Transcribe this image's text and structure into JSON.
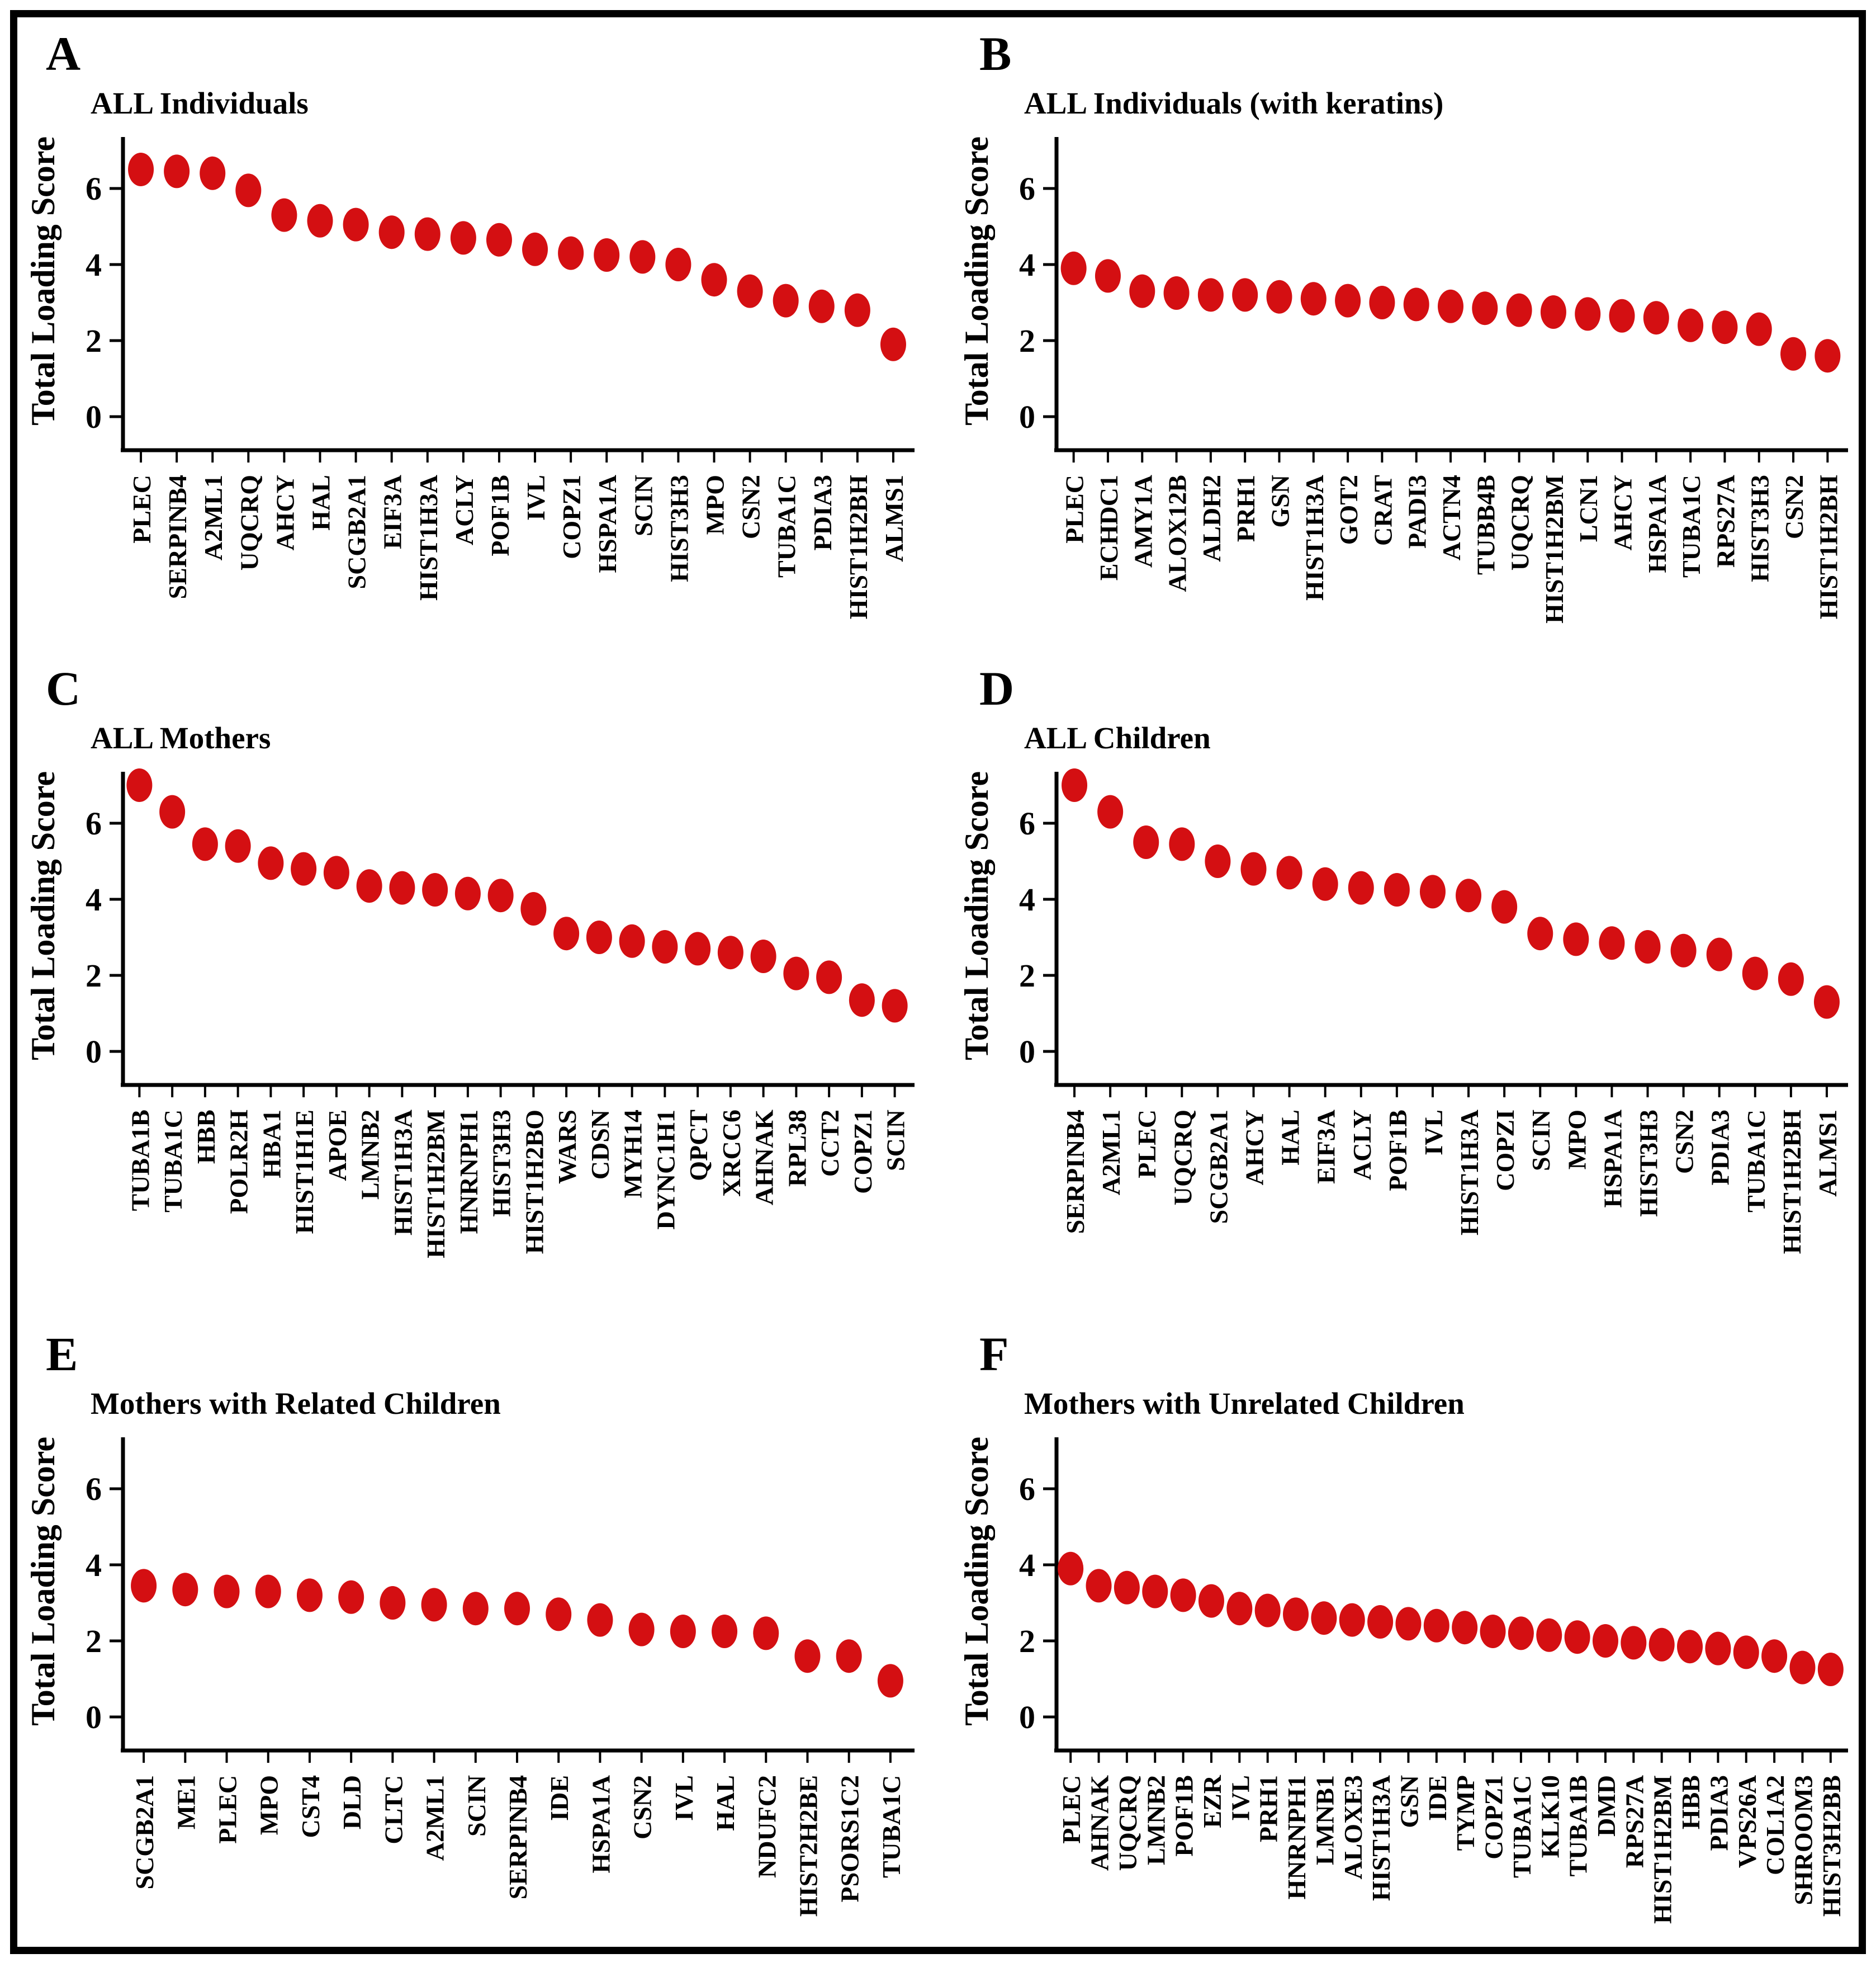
{
  "figure": {
    "background": "#ffffff",
    "border_color": "#000000",
    "dot_color": "#d40f12"
  },
  "chart_data": [
    {
      "type": "scatter",
      "panel_letter": "A",
      "title": "ALL Individuals",
      "ylabel": "Total Loading Score",
      "yticks": [
        0,
        2,
        4,
        6
      ],
      "ylim": [
        -0.9,
        7.35
      ],
      "grid": false,
      "dot_color": "#d40f12",
      "categories": [
        "PLEC",
        "SERPINB4",
        "A2ML1",
        "UQCRQ",
        "AHCY",
        "HAL",
        "SCGB2A1",
        "EIF3A",
        "HIST1H3A",
        "ACLY",
        "POF1B",
        "IVL",
        "COPZ1",
        "HSPA1A",
        "SCIN",
        "HIST3H3",
        "MPO",
        "CSN2",
        "TUBA1C",
        "PDIA3",
        "HIST1H2BH",
        "ALMS1"
      ],
      "values": [
        6.5,
        6.45,
        6.4,
        5.95,
        5.3,
        5.15,
        5.05,
        4.85,
        4.8,
        4.7,
        4.65,
        4.4,
        4.3,
        4.25,
        4.2,
        4.0,
        3.6,
        3.3,
        3.05,
        2.9,
        2.8,
        1.9
      ]
    },
    {
      "type": "scatter",
      "panel_letter": "B",
      "title": "ALL Individuals (with keratins)",
      "ylabel": "Total Loading Score",
      "yticks": [
        0,
        2,
        4,
        6
      ],
      "ylim": [
        -0.9,
        7.35
      ],
      "grid": false,
      "dot_color": "#d40f12",
      "categories": [
        "PLEC",
        "ECHDC1",
        "AMY1A",
        "ALOX12B",
        "ALDH2",
        "PRH1",
        "GSN",
        "HIST1H3A",
        "GOT2",
        "CRAT",
        "PADI3",
        "ACTN4",
        "TUBB4B",
        "UQCRQ",
        "HIST1H2BM",
        "LCN1",
        "AHCY",
        "HSPA1A",
        "TUBA1C",
        "RPS27A",
        "HIST3H3",
        "CSN2",
        "HIST1H2BH"
      ],
      "values": [
        3.9,
        3.7,
        3.3,
        3.25,
        3.2,
        3.2,
        3.15,
        3.1,
        3.05,
        3.0,
        2.95,
        2.9,
        2.85,
        2.8,
        2.75,
        2.7,
        2.65,
        2.6,
        2.4,
        2.35,
        2.3,
        1.65,
        1.6
      ]
    },
    {
      "type": "scatter",
      "panel_letter": "C",
      "title": "ALL Mothers",
      "ylabel": "Total Loading Score",
      "yticks": [
        0,
        2,
        4,
        6
      ],
      "ylim": [
        -0.9,
        7.35
      ],
      "grid": false,
      "dot_color": "#d40f12",
      "categories": [
        "TUBA1B",
        "TUBA1C",
        "HBB",
        "POLR2H",
        "HBA1",
        "HIST1H1E",
        "APOE",
        "LMNB2",
        "HIST1H3A",
        "HIST1H2BM",
        "HNRNPH1",
        "HIST3H3",
        "HIST1H2BO",
        "WARS",
        "CDSN",
        "MYH14",
        "DYNC1H1",
        "QPCT",
        "XRCC6",
        "AHNAK",
        "RPL38",
        "CCT2",
        "COPZ1",
        "SCIN"
      ],
      "values": [
        7.0,
        6.3,
        5.45,
        5.4,
        4.95,
        4.8,
        4.7,
        4.35,
        4.3,
        4.25,
        4.15,
        4.1,
        3.75,
        3.1,
        3.0,
        2.9,
        2.75,
        2.7,
        2.6,
        2.5,
        2.05,
        1.95,
        1.35,
        1.2
      ]
    },
    {
      "type": "scatter",
      "panel_letter": "D",
      "title": "ALL Children",
      "ylabel": "Total Loading Score",
      "yticks": [
        0,
        2,
        4,
        6
      ],
      "ylim": [
        -0.9,
        7.35
      ],
      "grid": false,
      "dot_color": "#d40f12",
      "categories": [
        "SERPINB4",
        "A2ML1",
        "PLEC",
        "UQCRQ",
        "SCGB2A1",
        "AHCY",
        "HAL",
        "EIF3A",
        "ACLY",
        "POF1B",
        "IVL",
        "HIST1H3A",
        "COPZI",
        "SCIN",
        "MPO",
        "HSPA1A",
        "HIST3H3",
        "CSN2",
        "PDIA3",
        "TUBA1C",
        "HIST1H2BH",
        "ALMS1"
      ],
      "values": [
        7.0,
        6.3,
        5.5,
        5.45,
        5.0,
        4.8,
        4.7,
        4.4,
        4.3,
        4.25,
        4.2,
        4.1,
        3.8,
        3.1,
        2.95,
        2.85,
        2.75,
        2.65,
        2.55,
        2.05,
        1.9,
        1.3
      ]
    },
    {
      "type": "scatter",
      "panel_letter": "E",
      "title": "Mothers with Related Children",
      "ylabel": "Total Loading Score",
      "yticks": [
        0,
        2,
        4,
        6
      ],
      "ylim": [
        -0.9,
        7.35
      ],
      "grid": false,
      "dot_color": "#d40f12",
      "categories": [
        "SCGB2A1",
        "ME1",
        "PLEC",
        "MPO",
        "CST4",
        "DLD",
        "CLTC",
        "A2ML1",
        "SCIN",
        "SERPINB4",
        "IDE",
        "HSPA1A",
        "CSN2",
        "IVL",
        "HAL",
        "NDUFC2",
        "HIST2H2BE",
        "PSORS1C2",
        "TUBA1C"
      ],
      "values": [
        3.45,
        3.35,
        3.3,
        3.3,
        3.2,
        3.15,
        3.0,
        2.95,
        2.85,
        2.85,
        2.7,
        2.55,
        2.3,
        2.25,
        2.25,
        2.2,
        1.6,
        1.6,
        0.95
      ]
    },
    {
      "type": "scatter",
      "panel_letter": "F",
      "title": "Mothers with Unrelated Children",
      "ylabel": "Total Loading Score",
      "yticks": [
        0,
        2,
        4,
        6
      ],
      "ylim": [
        -0.9,
        7.35
      ],
      "grid": false,
      "dot_color": "#d40f12",
      "categories": [
        "PLEC",
        "AHNAK",
        "UQCRQ",
        "LMNB2",
        "POF1B",
        "EZR",
        "IVL",
        "PRH1",
        "HNRNPH1",
        "LMNB1",
        "ALOXE3",
        "HIST1H3A",
        "GSN",
        "IDE",
        "TYMP",
        "COPZ1",
        "TUBA1C",
        "KLK10",
        "TUBA1B",
        "DMD",
        "RPS27A",
        "HIST1H2BM",
        "HBB",
        "PDIA3",
        "VPS26A",
        "COL1A2",
        "SHROOM3",
        "HIST3H2BB"
      ],
      "values": [
        3.9,
        3.45,
        3.4,
        3.3,
        3.2,
        3.05,
        2.85,
        2.8,
        2.7,
        2.6,
        2.55,
        2.5,
        2.45,
        2.4,
        2.35,
        2.25,
        2.2,
        2.15,
        2.1,
        2.0,
        1.95,
        1.9,
        1.85,
        1.8,
        1.7,
        1.6,
        1.3,
        1.25
      ]
    }
  ]
}
